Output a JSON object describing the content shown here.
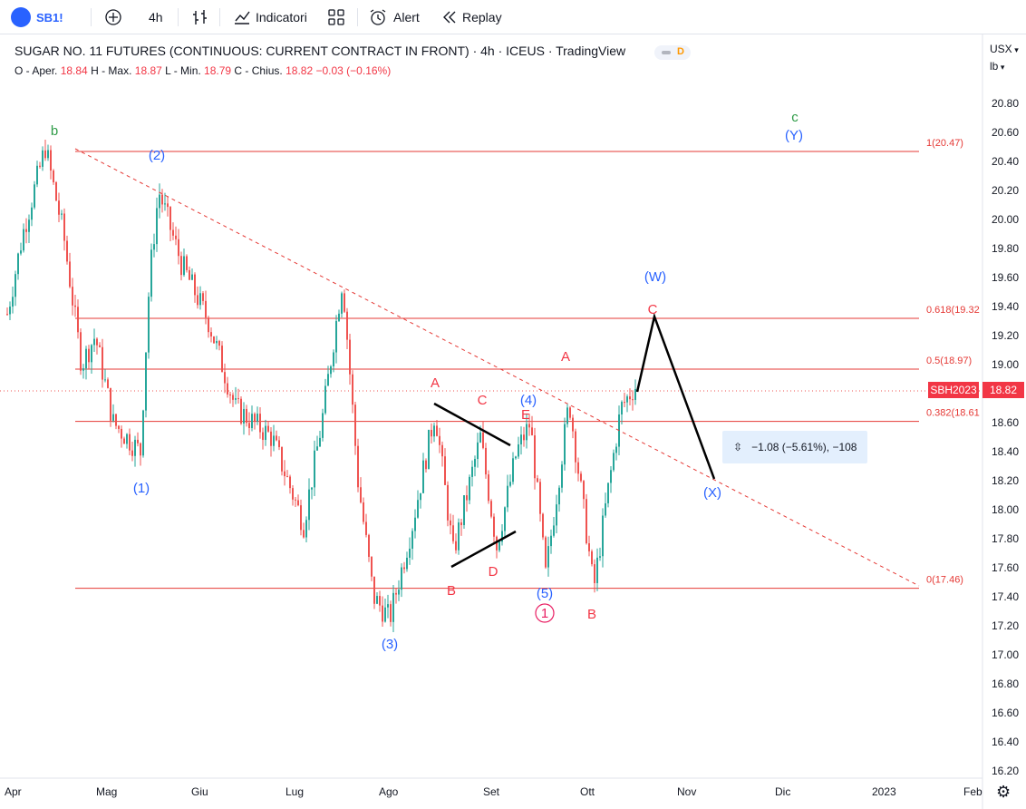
{
  "toolbar": {
    "symbol": "SB1!",
    "interval": "4h",
    "indicators_label": "Indicatori",
    "alert_label": "Alert",
    "replay_label": "Replay"
  },
  "legend": {
    "title": "SUGAR NO. 11 FUTURES (CONTINUOUS: CURRENT CONTRACT IN FRONT) · 4h · ICEUS · TradingView",
    "badge_letter": "D",
    "o_label": "O - Aper.",
    "o_value": "18.84",
    "h_label": "H - Max.",
    "h_value": "18.87",
    "l_label": "L - Min.",
    "l_value": "18.79",
    "c_label": "C - Chius.",
    "c_value": "18.82",
    "change": "−0.03 (−0.16%)"
  },
  "price_axis": {
    "currency": "USX",
    "unit": "lb",
    "ticks": [
      "20.80",
      "20.60",
      "20.40",
      "20.20",
      "20.00",
      "19.80",
      "19.60",
      "19.40",
      "19.20",
      "19.00",
      "18.80",
      "18.60",
      "18.40",
      "18.20",
      "18.00",
      "17.80",
      "17.60",
      "17.40",
      "17.20",
      "17.00",
      "16.80",
      "16.60",
      "16.40",
      "16.20"
    ],
    "current_symbol": "SBH2023",
    "current_price": "18.82"
  },
  "time_axis": {
    "ticks": [
      "Apr",
      "Mag",
      "Giu",
      "Lug",
      "Ago",
      "Set",
      "Ott",
      "Nov",
      "Dic",
      "2023",
      "Feb"
    ]
  },
  "fib_levels": [
    {
      "label": "1(20.47)",
      "price": 20.47
    },
    {
      "label": "0.618(19.32",
      "price": 19.32
    },
    {
      "label": "0.5(18.97)",
      "price": 18.97
    },
    {
      "label": "0.382(18.61",
      "price": 18.61
    },
    {
      "label": "0(17.46)",
      "price": 17.46
    }
  ],
  "wave_labels": [
    {
      "text": "b",
      "color": "#2e9b47"
    },
    {
      "text": "(2)",
      "color": "#2962ff"
    },
    {
      "text": "(1)",
      "color": "#2962ff"
    },
    {
      "text": "(3)",
      "color": "#2962ff"
    },
    {
      "text": "A",
      "color": "#f23645"
    },
    {
      "text": "B",
      "color": "#f23645"
    },
    {
      "text": "C",
      "color": "#f23645"
    },
    {
      "text": "D",
      "color": "#f23645"
    },
    {
      "text": "E",
      "color": "#f23645"
    },
    {
      "text": "(4)",
      "color": "#2962ff"
    },
    {
      "text": "(5)",
      "color": "#2962ff"
    },
    {
      "text": "1",
      "color": "#e91e63"
    },
    {
      "text": "B",
      "color": "#f23645"
    },
    {
      "text": "A",
      "color": "#f23645"
    },
    {
      "text": "C",
      "color": "#f23645"
    },
    {
      "text": "(W)",
      "color": "#2962ff"
    },
    {
      "text": "(X)",
      "color": "#2962ff"
    },
    {
      "text": "c",
      "color": "#2e9b47"
    },
    {
      "text": "(Y)",
      "color": "#2962ff"
    }
  ],
  "measure": {
    "text": "−1.08 (−5.61%), −108"
  },
  "colors": {
    "up": "#26a69a",
    "down": "#ef5350",
    "fib": "#e53935",
    "blue_wave": "#2962ff",
    "green_wave": "#2e9b47"
  }
}
